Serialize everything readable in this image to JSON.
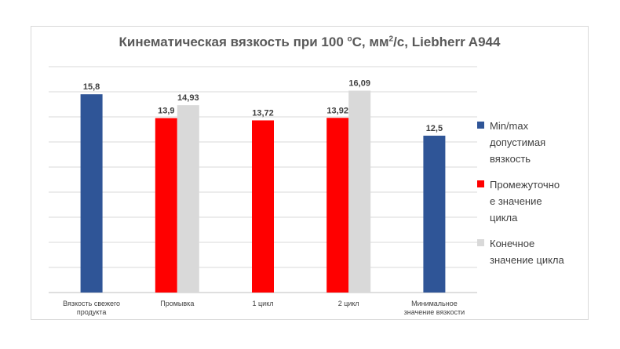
{
  "title_text": "Кинематическая вязкость при 100 ",
  "title_deg": "o",
  "title_mid": "C, мм",
  "title_sq": "2",
  "title_end": "/с, Liebherr A944",
  "chart_data": {
    "type": "bar",
    "title": "Кинематическая вязкость при 100 °C, мм²/с, Liebherr A944",
    "categories": [
      [
        "Вязкость свежего",
        "продукта"
      ],
      [
        "Промывка"
      ],
      [
        "1 цикл"
      ],
      [
        "2 цикл"
      ],
      [
        "Минимальное",
        "значение вязкости"
      ]
    ],
    "series": [
      {
        "name": "Min/max допустимая вязкость",
        "color": "#2F5597",
        "values": [
          15.8,
          null,
          null,
          null,
          12.5
        ],
        "labels": [
          "15,8",
          "",
          "",
          "",
          "12,5"
        ]
      },
      {
        "name": "Промежуточное значение цикла",
        "color": "#FF0000",
        "values": [
          null,
          13.9,
          13.72,
          13.92,
          null
        ],
        "labels": [
          "",
          "13,9",
          "13,72",
          "13,92",
          ""
        ]
      },
      {
        "name": "Конечное значение цикла",
        "color": "#D9D9D9",
        "values": [
          null,
          14.93,
          null,
          16.09,
          null
        ],
        "labels": [
          "",
          "14,93",
          "",
          "16,09",
          ""
        ]
      }
    ],
    "ylim": [
      0,
      18
    ],
    "gridlines": true,
    "legend_position": "right"
  },
  "legend": [
    {
      "label_lines": [
        "Min/max",
        "допустимая",
        "вязкость"
      ],
      "color": "#2F5597"
    },
    {
      "label_lines": [
        "Промежуточно",
        "е значение",
        "цикла"
      ],
      "color": "#FF0000"
    },
    {
      "label_lines": [
        "Конечное",
        "значение цикла"
      ],
      "color": "#D9D9D9"
    }
  ]
}
